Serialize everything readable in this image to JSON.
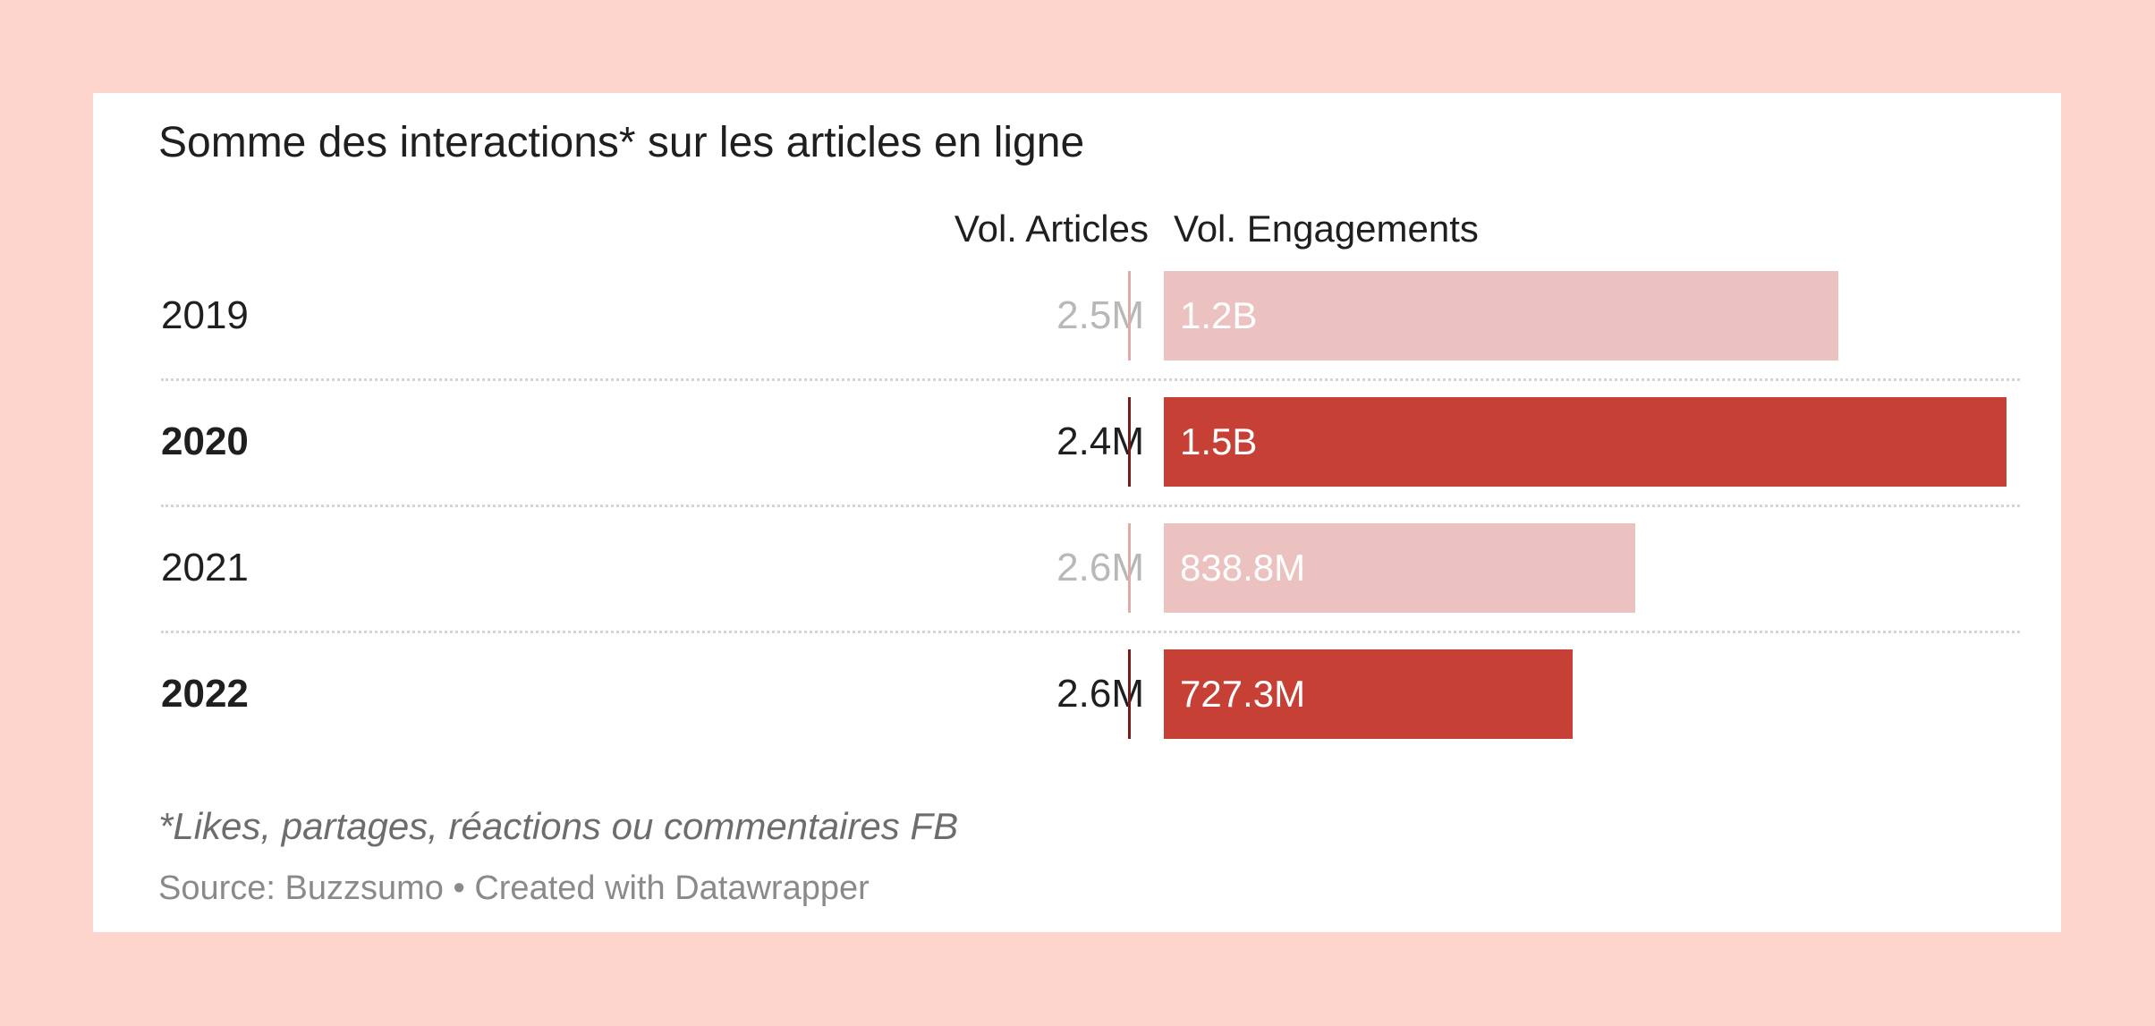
{
  "title": "Somme des interactions* sur les articles en ligne",
  "columns": {
    "articles": "Vol. Articles",
    "engagements": "Vol. Engagements"
  },
  "note": "*Likes, partages, réactions ou commentaires FB",
  "source": "Source: Buzzsumo • Created with Datawrapper",
  "colors": {
    "highlight": "#c74035",
    "muted": "#ebc2bf",
    "tick_highlight": "#7a1a1a",
    "tick_muted": "#e0aaa6",
    "text_muted": "#b8b8b8",
    "text_dark": "#1f1f1f"
  },
  "chart_data": {
    "type": "bar",
    "categories": [
      "2019",
      "2020",
      "2021",
      "2022"
    ],
    "highlighted": [
      false,
      true,
      false,
      true
    ],
    "series": [
      {
        "name": "Vol. Articles",
        "values": [
          2.5,
          2.4,
          2.6,
          2.6
        ],
        "unit": "M",
        "labels": [
          "2.5M",
          "2.4M",
          "2.6M",
          "2.6M"
        ]
      },
      {
        "name": "Vol. Engagements",
        "values": [
          1.2,
          1.5,
          0.8388,
          0.7273
        ],
        "unit": "B",
        "labels": [
          "1.2B",
          "1.5B",
          "838.8M",
          "727.3M"
        ]
      }
    ],
    "xlim": [
      0,
      1.5
    ]
  }
}
